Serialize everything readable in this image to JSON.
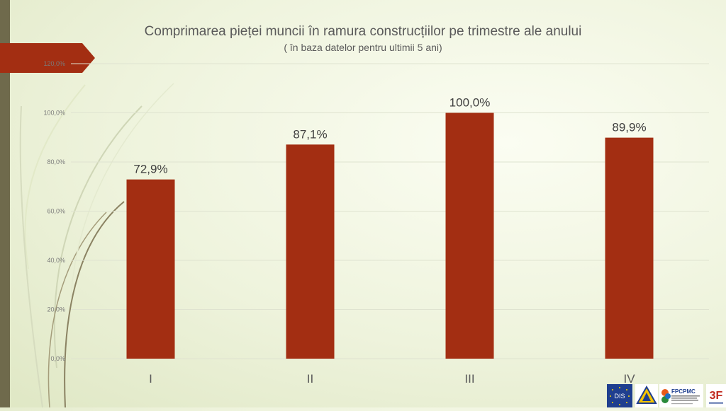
{
  "chart_data": {
    "type": "bar",
    "title": "Comprimarea pieței muncii în ramura construcțiilor pe trimestre ale anului",
    "subtitle": "( în baza datelor pentru ultimii 5 ani)",
    "categories": [
      "I",
      "II",
      "III",
      "IV"
    ],
    "values": [
      72.9,
      87.1,
      100.0,
      89.9
    ],
    "data_labels": [
      "72,9%",
      "87,1%",
      "100,0%",
      "89,9%"
    ],
    "yticks": [
      "0,0%",
      "20,0%",
      "40,0%",
      "60,0%",
      "80,0%",
      "100,0%",
      "120,0%"
    ],
    "ylim": [
      0,
      120
    ],
    "grid": true,
    "bar_color": "#a32e12",
    "xlabel": "",
    "ylabel": ""
  },
  "colors": {
    "accent": "#a32e12",
    "side_bar": "#6f6a4c"
  },
  "logos": {
    "dis": "DIS",
    "fpcpmc": "FPCPMC",
    "three_f": "3F"
  }
}
